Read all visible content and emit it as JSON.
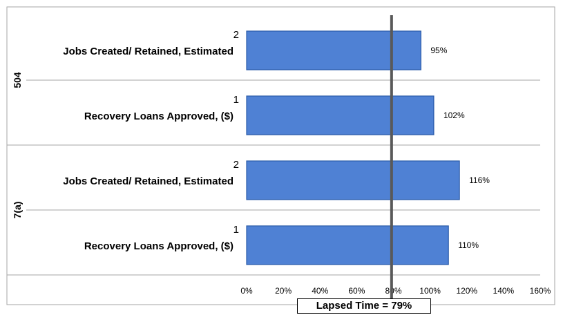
{
  "chart_data": {
    "type": "bar",
    "orientation": "horizontal",
    "groups": [
      {
        "name": "504",
        "items": [
          {
            "rank": "2",
            "label": "Jobs Created/ Retained, Estimated",
            "value": 95,
            "data_label": "95%"
          },
          {
            "rank": "1",
            "label": "Recovery Loans Approved, ($)",
            "value": 102,
            "data_label": "102%"
          }
        ]
      },
      {
        "name": "7(a)",
        "items": [
          {
            "rank": "2",
            "label": "Jobs Created/ Retained, Estimated",
            "value": 116,
            "data_label": "116%"
          },
          {
            "rank": "1",
            "label": "Recovery Loans Approved,  ($)",
            "value": 110,
            "data_label": "110%"
          }
        ]
      }
    ],
    "x_ticks": [
      "0%",
      "20%",
      "40%",
      "60%",
      "80%",
      "100%",
      "120%",
      "140%",
      "160%"
    ],
    "xlim": [
      0,
      160
    ],
    "reference_line": {
      "value": 79,
      "label": "Lapsed Time = 79%"
    },
    "grid": "horizontal separators",
    "colors": {
      "bar": "#4f81d4",
      "bar_edge": "#2a5aa8",
      "reference": "#595959",
      "grid": "#a6a6a6"
    }
  }
}
